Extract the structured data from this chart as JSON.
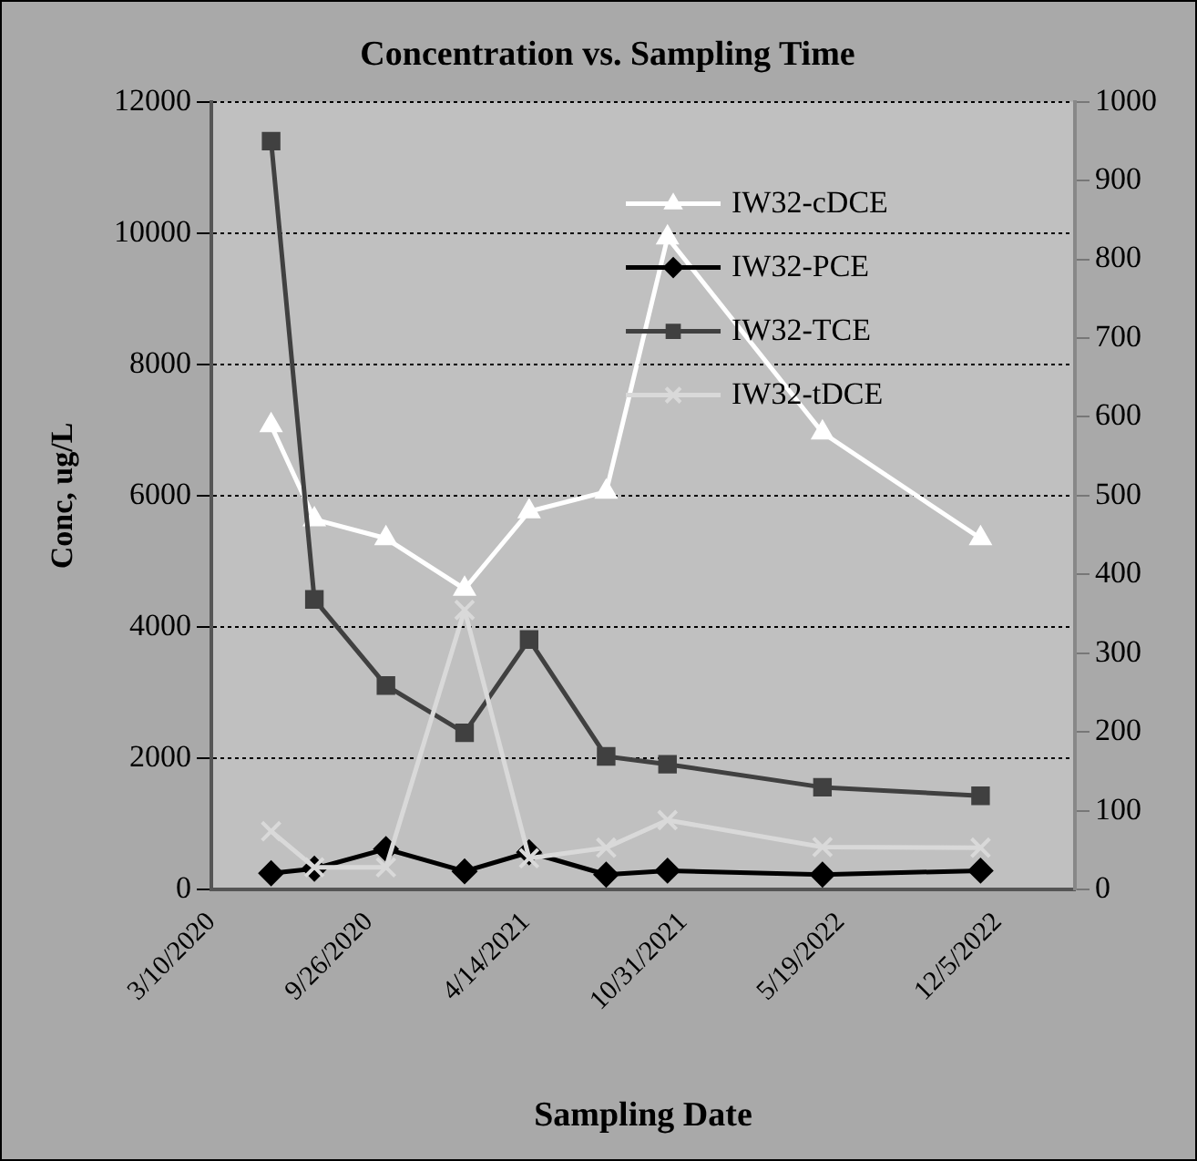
{
  "chart_data": {
    "type": "line",
    "title": "Concentration vs. Sampling Time",
    "xlabel": "Sampling Date",
    "ylabel": "Conc, ug/L",
    "x": [
      "2020-05-25",
      "2020-07-19",
      "2020-10-18",
      "2021-01-26",
      "2021-04-18",
      "2021-07-25",
      "2021-10-11",
      "2022-04-26",
      "2022-11-13"
    ],
    "series": [
      {
        "name": "IW32-cDCE",
        "color": "#ffffff",
        "marker": "triangle",
        "values": [
          7070,
          5640,
          5350,
          4580,
          5760,
          6060,
          9930,
          6960,
          5350
        ]
      },
      {
        "name": "IW32-PCE",
        "color": "#000000",
        "marker": "diamond",
        "values": [
          250,
          320,
          620,
          280,
          570,
          230,
          290,
          230,
          290
        ]
      },
      {
        "name": "IW32-TCE",
        "color": "#404040",
        "marker": "square",
        "values": [
          11400,
          4420,
          3110,
          2390,
          3810,
          2030,
          1910,
          1560,
          1430
        ]
      },
      {
        "name": "IW32-tDCE",
        "color": "#d9d9d9",
        "marker": "cross",
        "values": [
          890,
          340,
          340,
          4260,
          480,
          640,
          1060,
          650,
          640
        ]
      }
    ],
    "xlim": [
      "2020-03-10",
      "2023-03-13"
    ],
    "xticks": [
      {
        "value": "2020-03-10",
        "label": "3/10/2020"
      },
      {
        "value": "2020-09-26",
        "label": "9/26/2020"
      },
      {
        "value": "2021-04-14",
        "label": "4/14/2021"
      },
      {
        "value": "2021-10-31",
        "label": "10/31/2021"
      },
      {
        "value": "2022-05-19",
        "label": "5/19/2022"
      },
      {
        "value": "2022-12-05",
        "label": "12/5/2022"
      }
    ],
    "ylim": [
      0,
      12000
    ],
    "yticks": [
      0,
      2000,
      4000,
      6000,
      8000,
      10000,
      12000
    ],
    "y2lim": [
      0,
      1000
    ],
    "y2ticks": [
      0,
      100,
      200,
      300,
      400,
      500,
      600,
      700,
      800,
      900,
      1000
    ],
    "grid": "y",
    "legend": "top right",
    "line_style": "solid"
  }
}
